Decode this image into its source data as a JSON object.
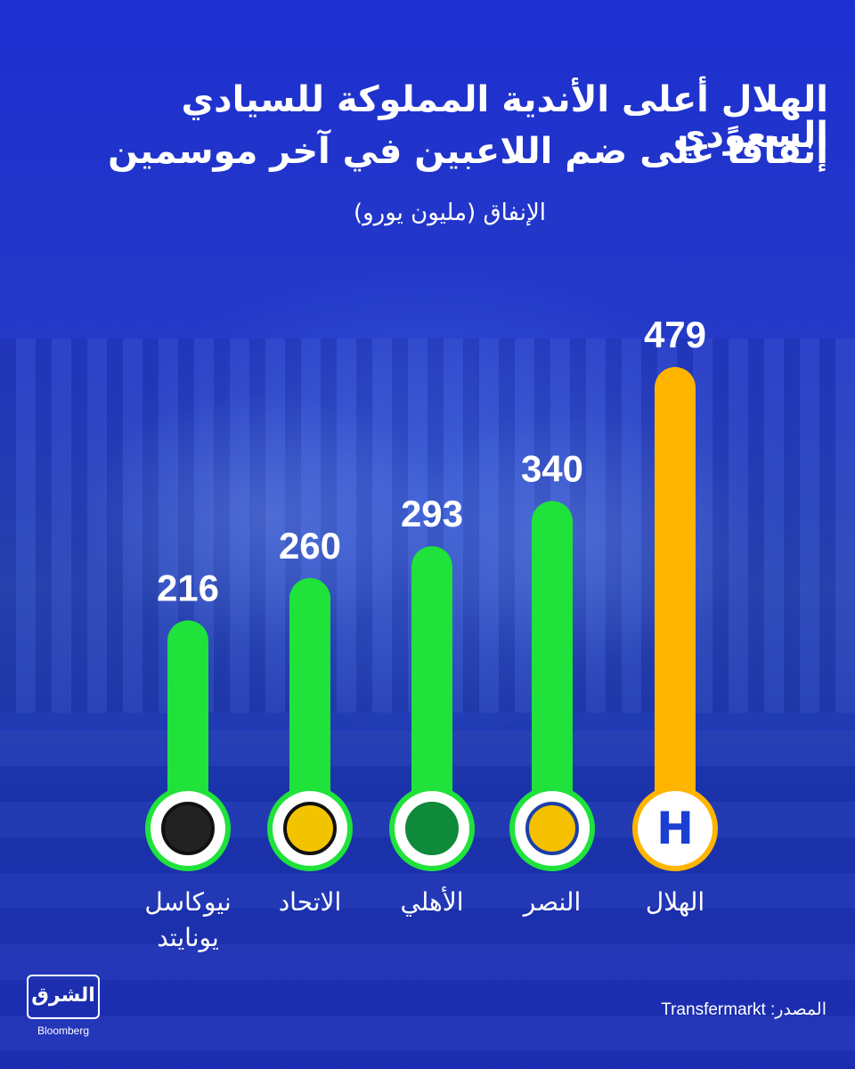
{
  "chart_data": {
    "type": "bar",
    "title": "الهلال أعلى الأندية المملوكة للسيادي السعودي",
    "title_line_2": "إنفاقاً على ضم اللاعبين في آخر موسمين",
    "subtitle": "الإنفاق (مليون يورو)",
    "categories": [
      "نيوكاسل\nيونايتد",
      "الاتحاد",
      "الأهلي",
      "النصر",
      "الهلال"
    ],
    "values": [
      216,
      260,
      293,
      340,
      479
    ],
    "ylim": [
      0,
      479
    ],
    "bar_colors": [
      "#1fe23a",
      "#1fe23a",
      "#1fe23a",
      "#1fe23a",
      "#ffb400"
    ],
    "icons": [
      "newcastle-crest-icon",
      "ittihad-crest-icon",
      "ahli-crest-icon",
      "nassr-crest-icon",
      "hilal-crest-icon"
    ],
    "grid": false
  },
  "source": "المصدر: Transfermarkt",
  "logo": {
    "main": "الشرق",
    "sub": "Bloomberg"
  }
}
